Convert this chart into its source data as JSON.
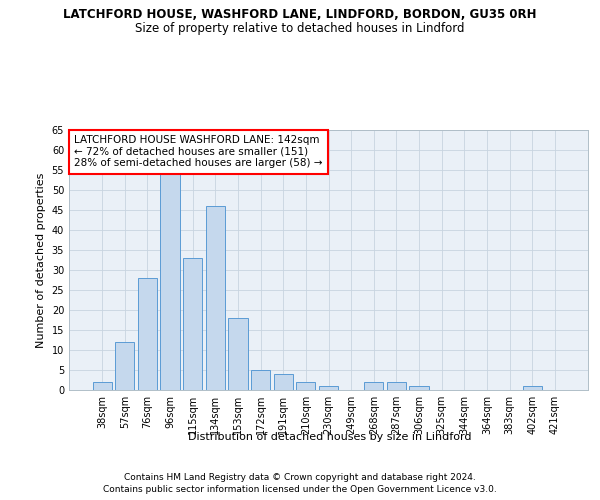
{
  "title_line1": "LATCHFORD HOUSE, WASHFORD LANE, LINDFORD, BORDON, GU35 0RH",
  "title_line2": "Size of property relative to detached houses in Lindford",
  "xlabel": "Distribution of detached houses by size in Lindford",
  "ylabel": "Number of detached properties",
  "categories": [
    "38sqm",
    "57sqm",
    "76sqm",
    "96sqm",
    "115sqm",
    "134sqm",
    "153sqm",
    "172sqm",
    "191sqm",
    "210sqm",
    "230sqm",
    "249sqm",
    "268sqm",
    "287sqm",
    "306sqm",
    "325sqm",
    "344sqm",
    "364sqm",
    "383sqm",
    "402sqm",
    "421sqm"
  ],
  "values": [
    2,
    12,
    28,
    55,
    33,
    46,
    18,
    5,
    4,
    2,
    1,
    0,
    2,
    2,
    1,
    0,
    0,
    0,
    0,
    1,
    0
  ],
  "bar_color": "#c5d8ed",
  "bar_edge_color": "#5b9bd5",
  "annotation_box_text": "LATCHFORD HOUSE WASHFORD LANE: 142sqm\n← 72% of detached houses are smaller (151)\n28% of semi-detached houses are larger (58) →",
  "ylim": [
    0,
    65
  ],
  "yticks": [
    0,
    5,
    10,
    15,
    20,
    25,
    30,
    35,
    40,
    45,
    50,
    55,
    60,
    65
  ],
  "grid_color": "#c8d4e0",
  "background_color": "#eaf0f7",
  "footer_line1": "Contains HM Land Registry data © Crown copyright and database right 2024.",
  "footer_line2": "Contains public sector information licensed under the Open Government Licence v3.0.",
  "title_fontsize": 8.5,
  "subtitle_fontsize": 8.5,
  "axis_label_fontsize": 8,
  "tick_fontsize": 7,
  "annotation_fontsize": 7.5,
  "footer_fontsize": 6.5
}
